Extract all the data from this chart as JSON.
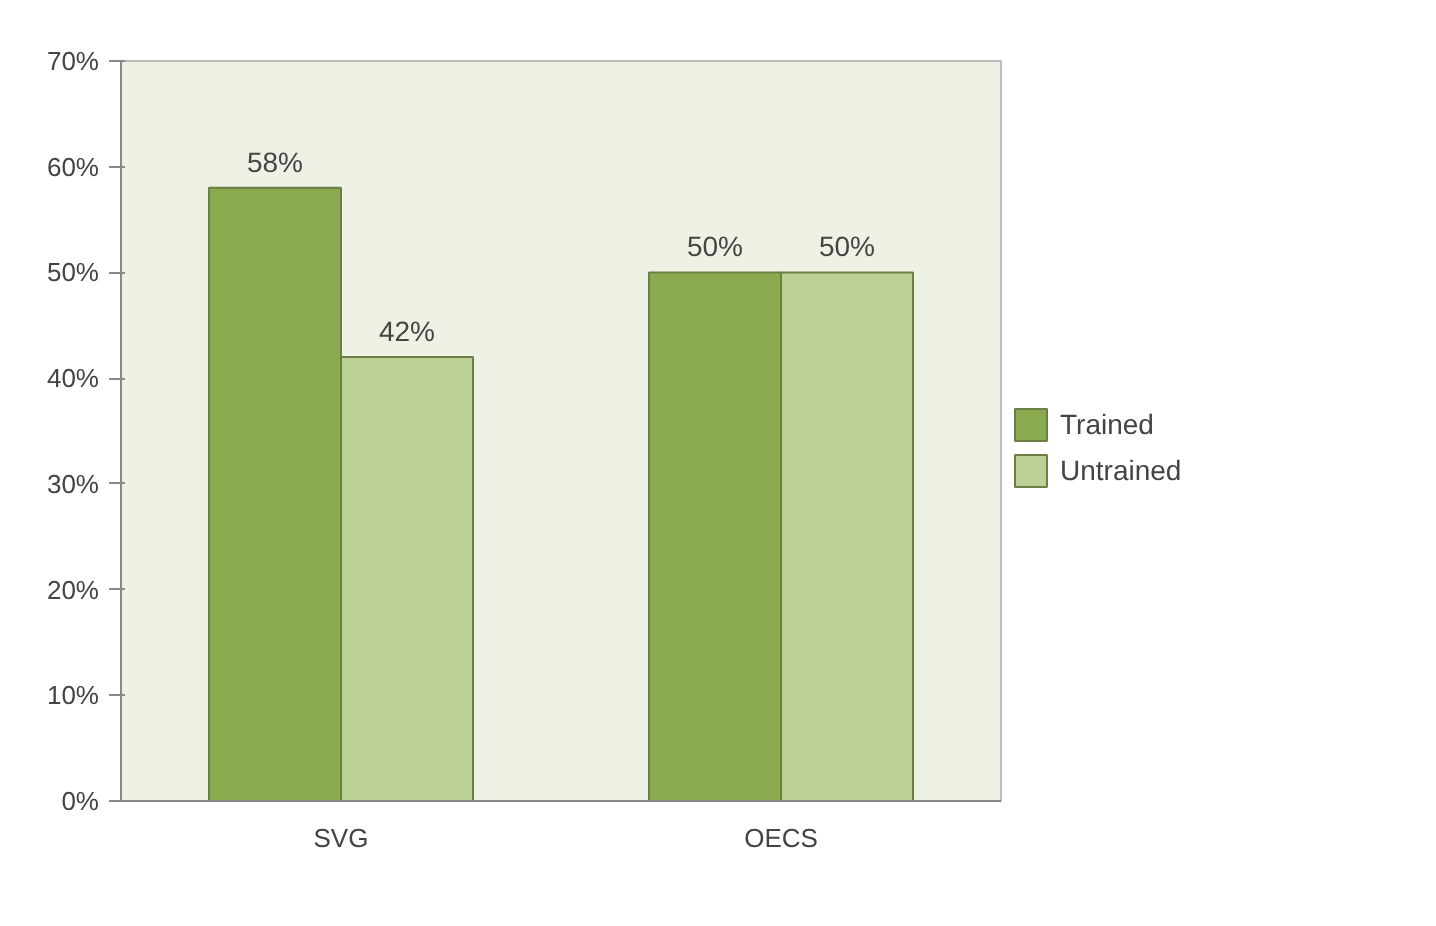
{
  "chart_data": {
    "type": "bar",
    "categories": [
      "SVG",
      "OECS"
    ],
    "series": [
      {
        "name": "Trained",
        "color": "#8aaa4f",
        "values": [
          58,
          50
        ],
        "value_labels": [
          "58%",
          "50%"
        ]
      },
      {
        "name": "Untrained",
        "color": "#bcd095",
        "values": [
          42,
          50
        ],
        "value_labels": [
          "42%",
          "50%"
        ]
      }
    ],
    "ylim": [
      0,
      70
    ],
    "yticks": [
      {
        "value": 0,
        "label": "0%"
      },
      {
        "value": 10,
        "label": "10%"
      },
      {
        "value": 20,
        "label": "20%"
      },
      {
        "value": 30,
        "label": "30%"
      },
      {
        "value": 40,
        "label": "40%"
      },
      {
        "value": 50,
        "label": "50%"
      },
      {
        "value": 60,
        "label": "60%"
      },
      {
        "value": 70,
        "label": "70%"
      }
    ],
    "grid": false,
    "legend": "right"
  }
}
